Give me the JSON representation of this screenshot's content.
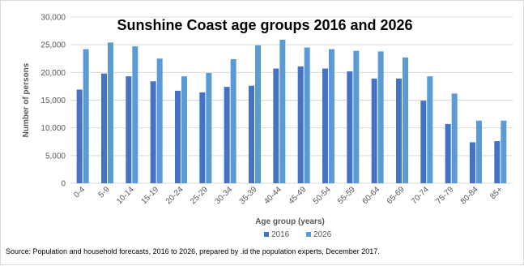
{
  "chart_data": {
    "type": "bar",
    "title": "Sunshine Coast age groups 2016 and 2026",
    "xlabel": "Age group (years)",
    "ylabel": "Number of persons",
    "ylim": [
      0,
      30000
    ],
    "yticks": [
      "0",
      "5,000",
      "10,000",
      "15,000",
      "20,000",
      "25,000",
      "30,000"
    ],
    "ytick_values": [
      0,
      5000,
      10000,
      15000,
      20000,
      25000,
      30000
    ],
    "categories": [
      "0-4",
      "5-9",
      "10-14",
      "15-19",
      "20-24",
      "25-29",
      "30-34",
      "35-39",
      "40-44",
      "45-49",
      "50-54",
      "55-59",
      "60-64",
      "65-69",
      "70-74",
      "75-79",
      "80-84",
      "85+"
    ],
    "series": [
      {
        "name": "2016",
        "color": "#4472C4",
        "values": [
          16900,
          19800,
          19300,
          18400,
          16700,
          16400,
          17400,
          17600,
          20700,
          21100,
          20700,
          20200,
          18900,
          18900,
          14900,
          10700,
          7400,
          7600
        ]
      },
      {
        "name": "2026",
        "color": "#5B9BD5",
        "values": [
          24200,
          25400,
          24700,
          22500,
          19300,
          19900,
          22400,
          24900,
          25900,
          24500,
          24200,
          23900,
          23800,
          22700,
          19300,
          16200,
          11300,
          11300
        ]
      }
    ],
    "grid": true,
    "legend": "bottom"
  },
  "source_note": "Source: Population and household forecasts, 2016 to 2026, prepared by .id the population experts, December 2017."
}
